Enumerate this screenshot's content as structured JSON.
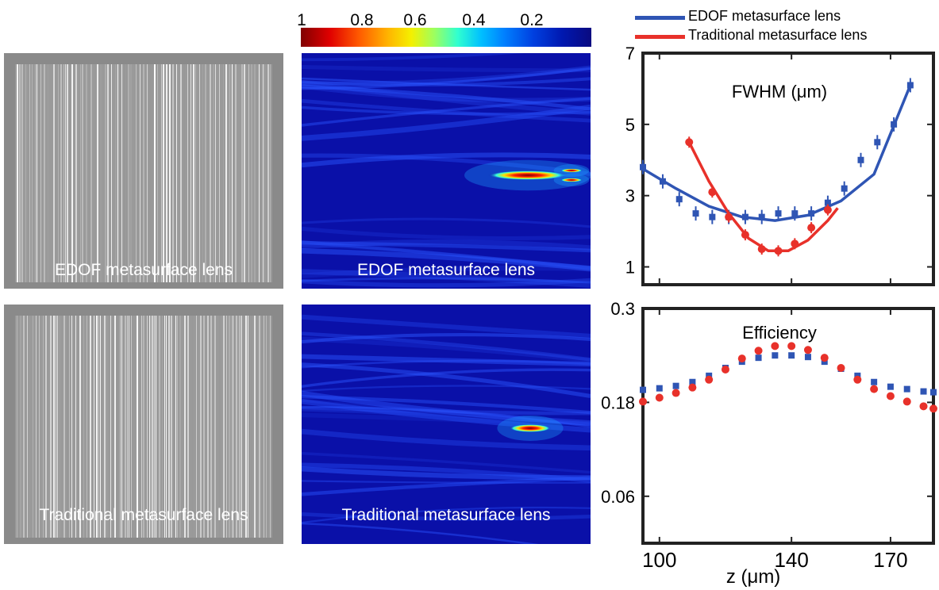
{
  "panels": {
    "sem_top_label": "EDOF metasurface lens",
    "sem_bottom_label": "Traditional metasurface lens",
    "field_top_label": "EDOF metasurface lens",
    "field_bottom_label": "Traditional metasurface lens"
  },
  "colorbar": {
    "ticks": [
      "1",
      "0.8",
      "0.6",
      "0.4",
      "0.2"
    ],
    "colormap": "jet-reversed"
  },
  "legend": [
    {
      "label": "EDOF metasurface lens",
      "color": "#2f55b4"
    },
    {
      "label": "Traditional metasurface lens",
      "color": "#e8312a"
    }
  ],
  "chart_data": [
    {
      "type": "scatter",
      "title": "FWHM (μm)",
      "xlabel": "",
      "ylabel": "",
      "xlim": [
        95,
        183
      ],
      "ylim": [
        0.5,
        7
      ],
      "yticks": [
        1,
        3,
        5,
        7
      ],
      "series": [
        {
          "name": "EDOF metasurface lens",
          "color": "#2f55b4",
          "x": [
            95,
            101,
            106,
            111,
            116,
            121,
            126,
            131,
            136,
            141,
            146,
            151,
            156,
            161,
            166,
            171,
            176
          ],
          "y": [
            3.8,
            3.4,
            2.9,
            2.5,
            2.4,
            2.4,
            2.4,
            2.4,
            2.5,
            2.5,
            2.5,
            2.8,
            3.2,
            4.0,
            4.5,
            5.0,
            6.1
          ],
          "fit": [
            [
              95,
              3.75
            ],
            [
              105,
              3.2
            ],
            [
              115,
              2.7
            ],
            [
              125,
              2.4
            ],
            [
              135,
              2.3
            ],
            [
              145,
              2.45
            ],
            [
              155,
              2.85
            ],
            [
              165,
              3.6
            ],
            [
              176,
              6.1
            ]
          ]
        },
        {
          "name": "Traditional metasurface lens",
          "color": "#e8312a",
          "x": [
            109,
            116,
            121,
            126,
            131,
            136,
            141,
            146,
            151
          ],
          "y": [
            4.5,
            3.1,
            2.4,
            1.9,
            1.5,
            1.45,
            1.65,
            2.1,
            2.6
          ],
          "fit": [
            [
              109,
              4.5
            ],
            [
              115,
              3.4
            ],
            [
              121,
              2.5
            ],
            [
              127,
              1.8
            ],
            [
              133,
              1.45
            ],
            [
              139,
              1.45
            ],
            [
              145,
              1.75
            ],
            [
              151,
              2.3
            ],
            [
              154,
              2.65
            ]
          ]
        }
      ]
    },
    {
      "type": "scatter",
      "title": "Efficiency",
      "xlabel": "z (μm)",
      "ylabel": "",
      "xlim": [
        95,
        183
      ],
      "ylim": [
        0,
        0.3
      ],
      "xticks": [
        100,
        140,
        170
      ],
      "yticks": [
        0.06,
        0.18,
        0.3
      ],
      "series": [
        {
          "name": "EDOF metasurface lens",
          "color": "#2f55b4",
          "x": [
            95,
            100,
            105,
            110,
            115,
            120,
            125,
            130,
            135,
            140,
            145,
            150,
            155,
            160,
            165,
            170,
            175,
            180,
            183
          ],
          "y": [
            0.196,
            0.198,
            0.201,
            0.206,
            0.214,
            0.224,
            0.232,
            0.237,
            0.24,
            0.24,
            0.238,
            0.232,
            0.223,
            0.214,
            0.206,
            0.2,
            0.197,
            0.194,
            0.193
          ]
        },
        {
          "name": "Traditional metasurface lens",
          "color": "#e8312a",
          "x": [
            95,
            100,
            105,
            110,
            115,
            120,
            125,
            130,
            135,
            140,
            145,
            150,
            155,
            160,
            165,
            170,
            175,
            180,
            183
          ],
          "y": [
            0.181,
            0.186,
            0.192,
            0.199,
            0.209,
            0.222,
            0.236,
            0.246,
            0.252,
            0.252,
            0.247,
            0.237,
            0.224,
            0.209,
            0.197,
            0.188,
            0.181,
            0.175,
            0.172
          ]
        }
      ]
    }
  ]
}
